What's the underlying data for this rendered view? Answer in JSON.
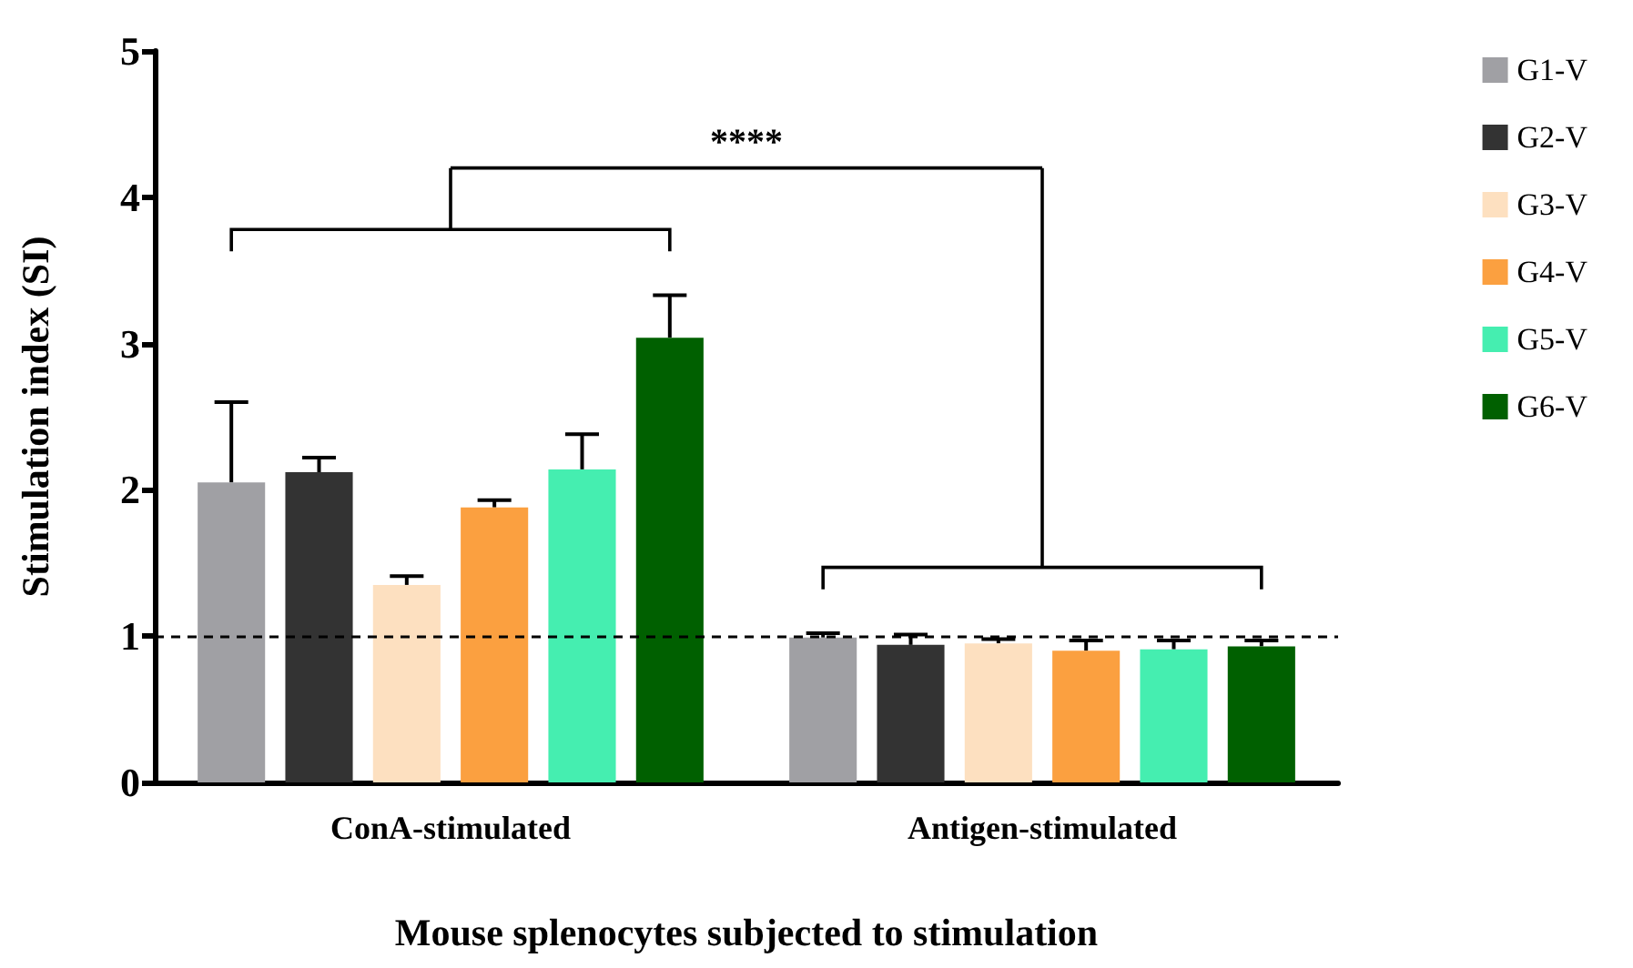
{
  "chart_data": {
    "type": "bar",
    "xlabel": "Mouse splenocytes subjected to stimulation",
    "ylabel": "Stimulation index (SI)",
    "categories": [
      "ConA-stimulated",
      "Antigen-stimulated"
    ],
    "series": [
      {
        "name": "G1-V",
        "color": "#a0a0a4",
        "values": [
          2.05,
          0.99
        ],
        "errors": [
          0.55,
          0.03
        ]
      },
      {
        "name": "G2-V",
        "color": "#333333",
        "values": [
          2.12,
          0.94
        ],
        "errors": [
          0.1,
          0.07
        ]
      },
      {
        "name": "G3-V",
        "color": "#fde0c0",
        "values": [
          1.35,
          0.95
        ],
        "errors": [
          0.06,
          0.03
        ]
      },
      {
        "name": "G4-V",
        "color": "#fba040",
        "values": [
          1.88,
          0.9
        ],
        "errors": [
          0.05,
          0.07
        ]
      },
      {
        "name": "G5-V",
        "color": "#45eeb0",
        "values": [
          2.14,
          0.91
        ],
        "errors": [
          0.24,
          0.06
        ]
      },
      {
        "name": "G6-V",
        "color": "#006000",
        "values": [
          3.04,
          0.93
        ],
        "errors": [
          0.29,
          0.04
        ]
      }
    ],
    "ylim": [
      0,
      5
    ],
    "yticks": [
      0,
      1,
      2,
      3,
      4,
      5
    ],
    "grid": false,
    "legend": "right",
    "ref_lines": [
      {
        "axis": "y",
        "value": 1,
        "line_style": "dashed",
        "color": "#000000"
      }
    ],
    "annotations": [
      "****"
    ]
  }
}
